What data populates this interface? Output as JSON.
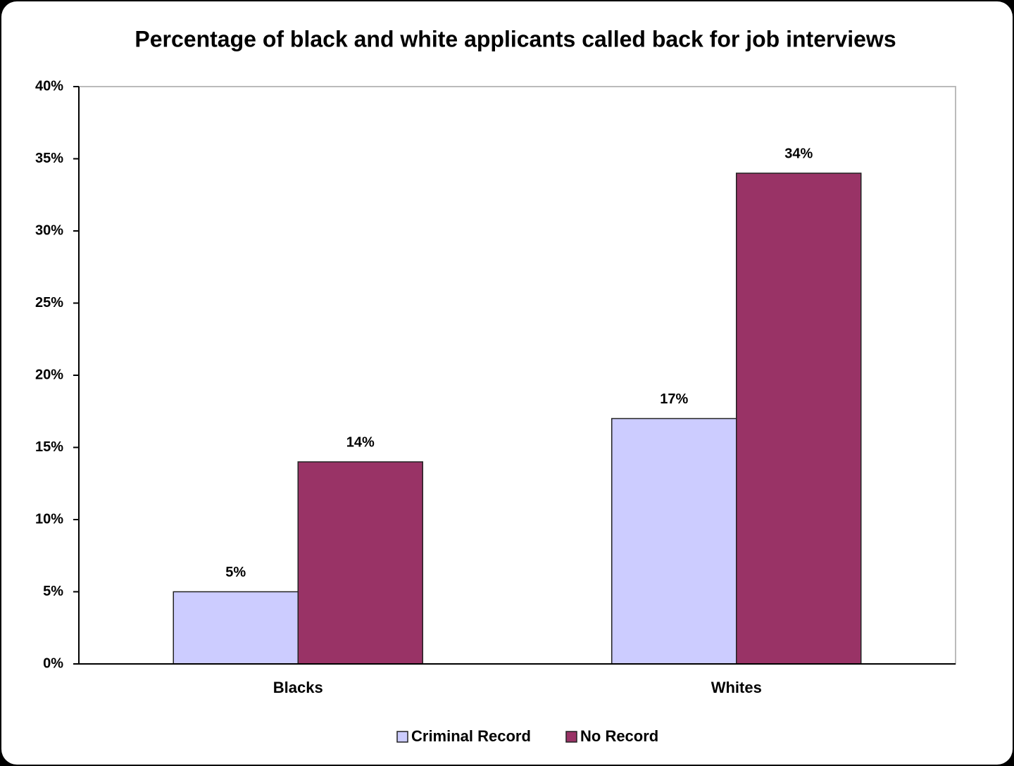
{
  "chart_data": {
    "type": "bar",
    "title": "Percentage of black and white applicants called back for job interviews",
    "categories": [
      "Blacks",
      "Whites"
    ],
    "series": [
      {
        "name": "Criminal Record",
        "color": "#ccccff",
        "values": [
          5,
          17
        ],
        "value_labels": [
          "5%",
          "17%"
        ]
      },
      {
        "name": "No Record",
        "color": "#993366",
        "values": [
          14,
          34
        ],
        "value_labels": [
          "14%",
          "34%"
        ]
      }
    ],
    "ylim": [
      0,
      40
    ],
    "yticks": [
      {
        "value": 0,
        "label": "0%"
      },
      {
        "value": 5,
        "label": "5%"
      },
      {
        "value": 10,
        "label": "10%"
      },
      {
        "value": 15,
        "label": "15%"
      },
      {
        "value": 20,
        "label": "20%"
      },
      {
        "value": 25,
        "label": "25%"
      },
      {
        "value": 30,
        "label": "30%"
      },
      {
        "value": 35,
        "label": "35%"
      },
      {
        "value": 40,
        "label": "40%"
      }
    ],
    "legend": "bottom"
  }
}
